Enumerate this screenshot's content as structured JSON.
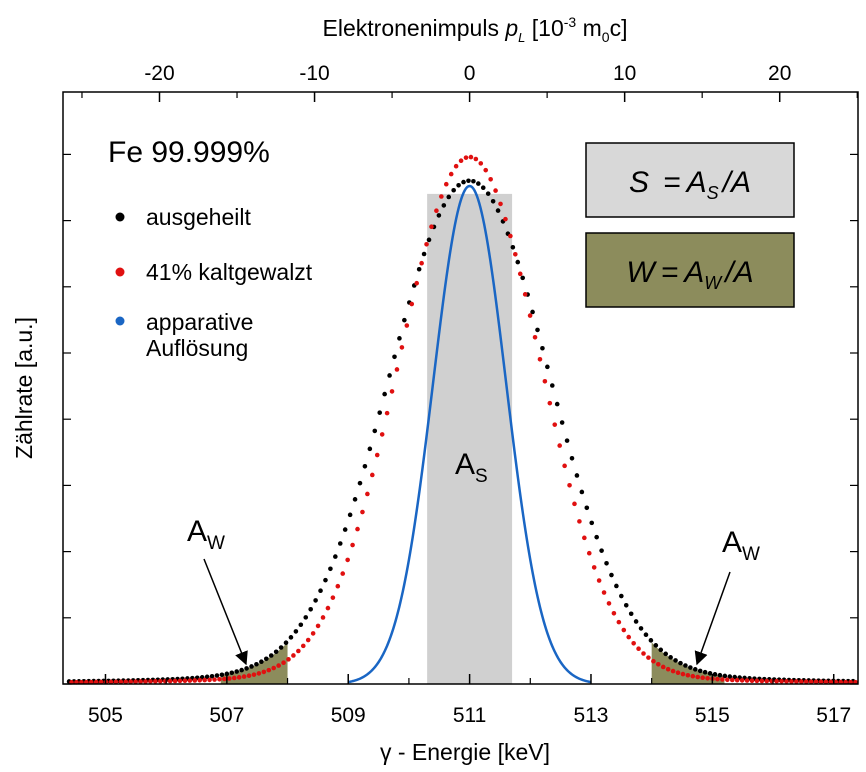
{
  "chart_data": {
    "type": "scatter",
    "x_axis_bottom": {
      "label": "γ - Energie [keV]",
      "range": [
        504.3,
        517.4
      ],
      "ticks": [
        "505",
        "507",
        "509",
        "511",
        "513",
        "515",
        "517"
      ],
      "tick_values": [
        505,
        507,
        509,
        511,
        513,
        515,
        517
      ]
    },
    "x_axis_top": {
      "label_prefix": "Elektronenimpuls ",
      "label_var": "p",
      "label_sub": "L",
      "label_unit_pre": " [10",
      "label_unit_exp": "-3",
      "label_unit_mid": " m",
      "label_unit_sub": "0",
      "label_unit_post": "c]",
      "ticks": [
        "-20",
        "-10",
        "0",
        "10",
        "20"
      ],
      "tick_values": [
        -20,
        -10,
        0,
        10,
        20
      ]
    },
    "y_axis": {
      "label": "Zählrate [a.u.]",
      "range": [
        0,
        1.0
      ]
    },
    "sample_title": "Fe 99.999%",
    "legend": [
      {
        "name": "ausgeheilt",
        "color": "#000000"
      },
      {
        "name": "41% kaltgewalzt",
        "color": "#e01010"
      },
      {
        "name": "apparative",
        "name_line2": "Auflösung",
        "color": "#1a66c4"
      }
    ],
    "formula_s": {
      "lhs": "S",
      "rhs": "A",
      "rhs_sub": "S",
      "denom": "/A",
      "fill": "#d8d8d8"
    },
    "formula_w": {
      "lhs": "W",
      "rhs": "A",
      "rhs_sub": "W",
      "denom": "/A",
      "fill": "#8c8c5c"
    },
    "regions": {
      "S_window": [
        510.3,
        511.7
      ],
      "W_left": [
        506.9,
        508.0
      ],
      "W_right": [
        514.0,
        515.2
      ]
    },
    "annotations": [
      {
        "text": "A",
        "sub": "S"
      },
      {
        "text": "A",
        "sub": "W"
      },
      {
        "text": "A",
        "sub": "W"
      }
    ],
    "series": [
      {
        "name": "ausgeheilt",
        "type": "gaussian_points",
        "center": 511.0,
        "peak": 0.955,
        "sigma": 1.3,
        "tail_amp": 0.038,
        "tail_width": 3.2,
        "x_start": 504.4,
        "x_end": 517.4,
        "points": 160
      },
      {
        "name": "41% kaltgewalzt",
        "type": "gaussian_points",
        "center": 511.0,
        "peak": 1.0,
        "sigma": 1.16,
        "tail_amp": 0.028,
        "tail_width": 3.0,
        "x_start": 504.4,
        "x_end": 517.4,
        "points": 160
      },
      {
        "name": "apparative Auflösung",
        "type": "gaussian_line",
        "center": 511.0,
        "peak": 0.945,
        "sigma": 0.6,
        "x_start": 509.0,
        "x_end": 513.0
      }
    ]
  }
}
